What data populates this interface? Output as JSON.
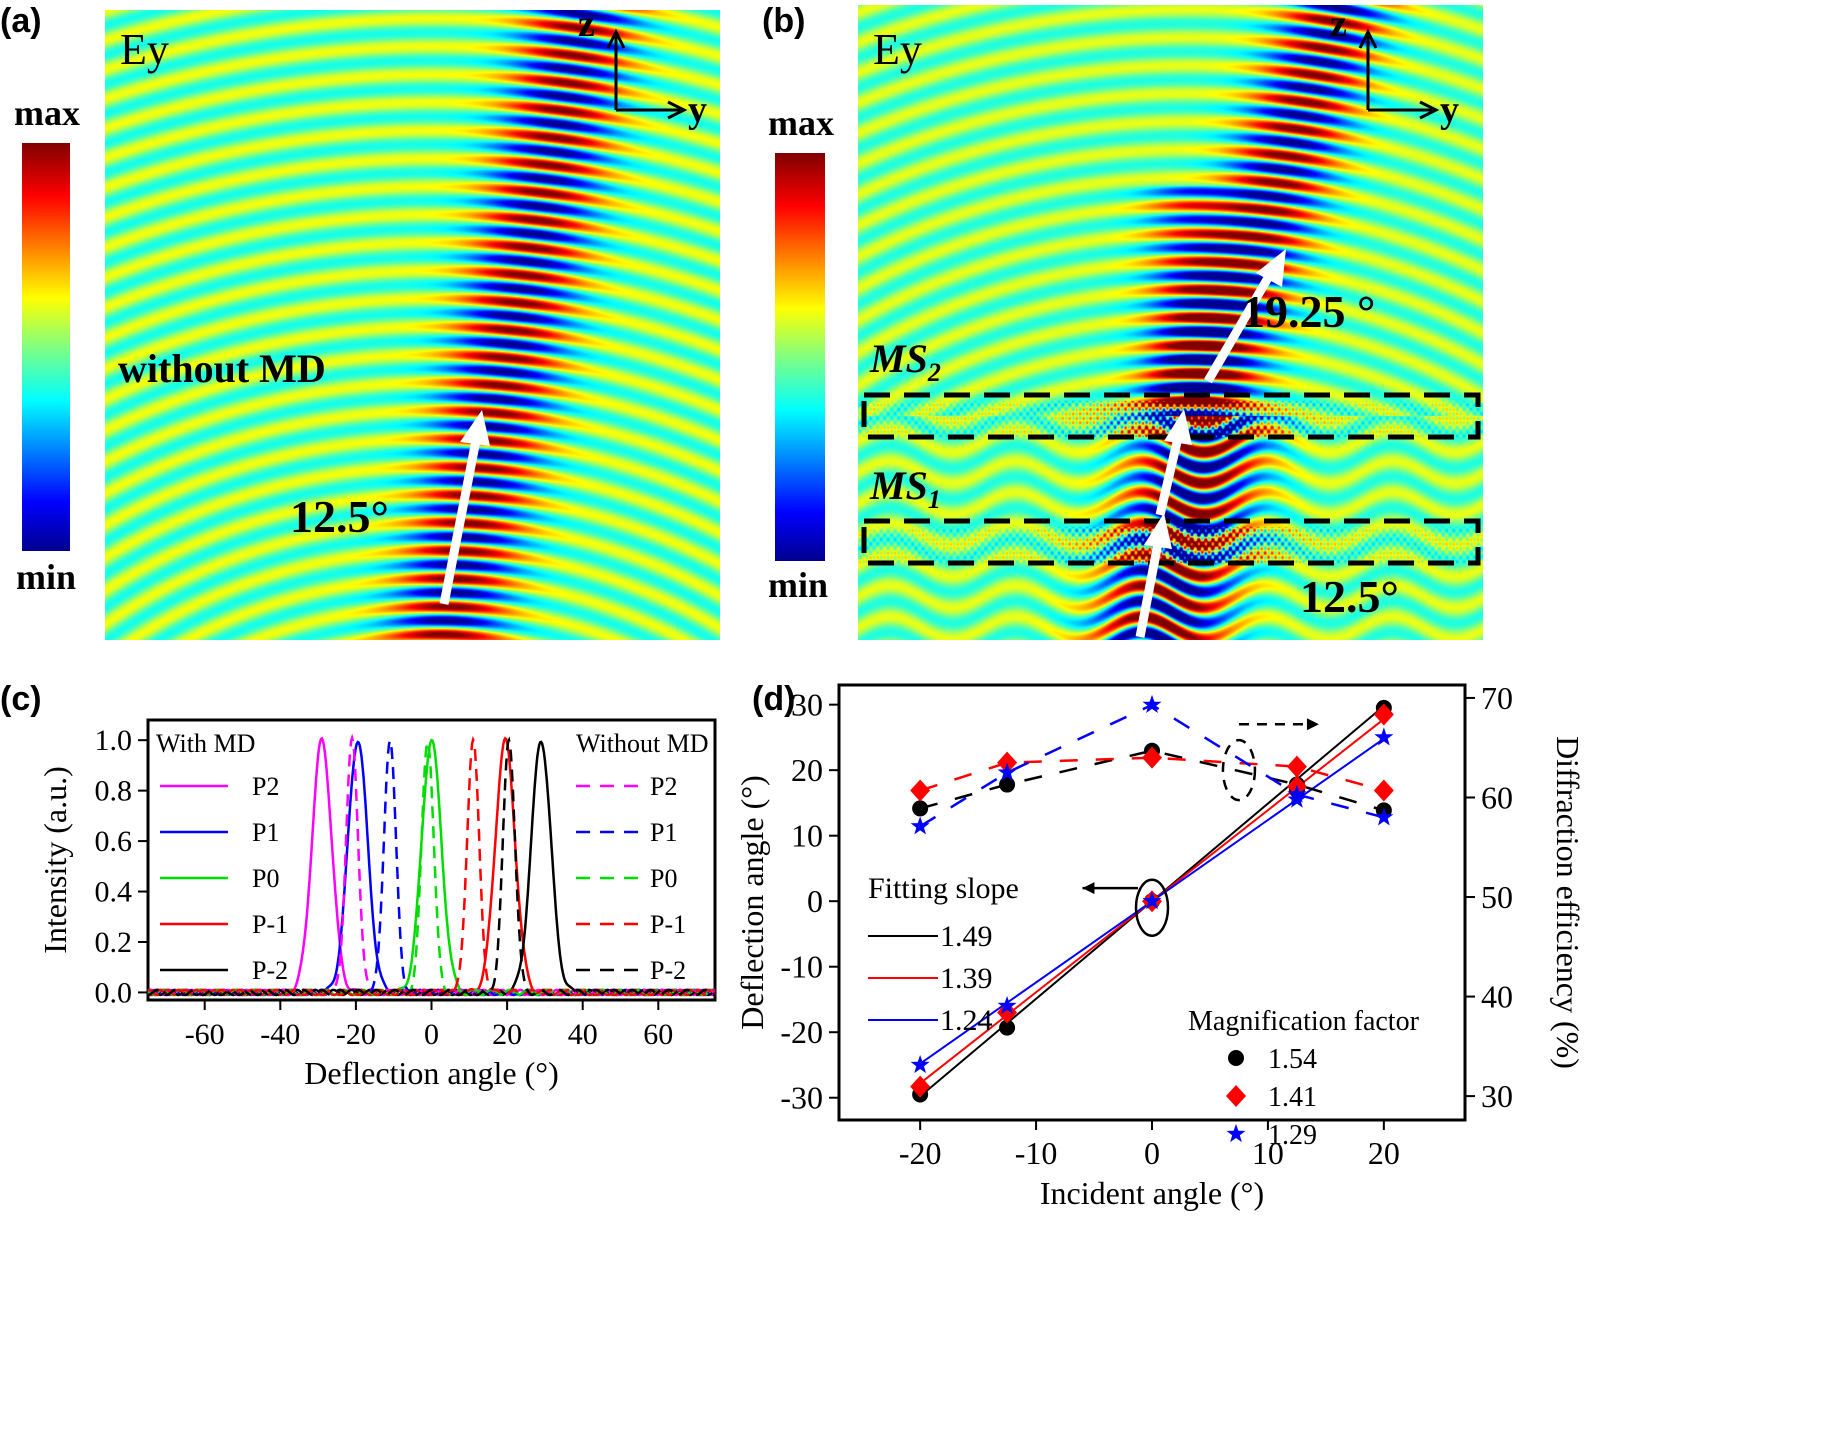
{
  "panel_a": {
    "label": "(a)",
    "component": "Ey",
    "axis_z": "z",
    "axis_y": "y",
    "colorbar_max": "max",
    "colorbar_min": "min",
    "annotation": "without MD",
    "angle": "12.5°"
  },
  "panel_b": {
    "label": "(b)",
    "component": "Ey",
    "axis_z": "z",
    "axis_y": "y",
    "colorbar_max": "max",
    "colorbar_min": "min",
    "ms2": "MS",
    "ms2_sub": "2",
    "ms1": "MS",
    "ms1_sub": "1",
    "angle_out": "19.25 °",
    "angle_in": "12.5°"
  },
  "colormap": [
    "#00008f",
    "#0000ff",
    "#00ffff",
    "#80ff80",
    "#ffff00",
    "#ff0000",
    "#800000"
  ],
  "chart_data": [
    {
      "panel": "(c)",
      "type": "line",
      "xlabel": "Deflection angle (°)",
      "ylabel": "Intensity (a.u.)",
      "xlim": [
        -75,
        75
      ],
      "ylim": [
        -0.03,
        1.08
      ],
      "xticks": [
        -60,
        -40,
        -20,
        0,
        20,
        40,
        60
      ],
      "yticks": [
        0.0,
        0.2,
        0.4,
        0.6,
        0.8,
        1.0
      ],
      "ytick_labels": [
        "0.0",
        "0.2",
        "0.4",
        "0.6",
        "0.8",
        "1.0"
      ],
      "legend_with_title": "With MD",
      "legend_without_title": "Without MD",
      "series": [
        {
          "name": "P2",
          "group": "With MD",
          "style": "solid",
          "color": "#ff00ff",
          "peak_angle": -29,
          "peak_value": 1.0
        },
        {
          "name": "P1",
          "group": "With MD",
          "style": "solid",
          "color": "#0000ff",
          "peak_angle": -19.5,
          "peak_value": 1.0
        },
        {
          "name": "P0",
          "group": "With MD",
          "style": "solid",
          "color": "#00dd00",
          "peak_angle": 0,
          "peak_value": 1.0
        },
        {
          "name": "P-1",
          "group": "With MD",
          "style": "solid",
          "color": "#ff0000",
          "peak_angle": 19.5,
          "peak_value": 1.0
        },
        {
          "name": "P-2",
          "group": "With MD",
          "style": "solid",
          "color": "#000000",
          "peak_angle": 29,
          "peak_value": 1.0
        },
        {
          "name": "P2",
          "group": "Without MD",
          "style": "dashed",
          "color": "#ff00ff",
          "peak_angle": -21,
          "peak_value": 1.0
        },
        {
          "name": "P1",
          "group": "Without MD",
          "style": "dashed",
          "color": "#0000ff",
          "peak_angle": -11,
          "peak_value": 1.0
        },
        {
          "name": "P0",
          "group": "Without MD",
          "style": "dashed",
          "color": "#00dd00",
          "peak_angle": -1,
          "peak_value": 1.0
        },
        {
          "name": "P-1",
          "group": "Without MD",
          "style": "dashed",
          "color": "#ff0000",
          "peak_angle": 11,
          "peak_value": 1.0
        },
        {
          "name": "P-2",
          "group": "Without MD",
          "style": "dashed",
          "color": "#000000",
          "peak_angle": 20.5,
          "peak_value": 1.0
        }
      ]
    },
    {
      "panel": "(d)",
      "type": "scatter",
      "xlabel": "Incident angle (°)",
      "ylabel": "Deflection angle (°)",
      "ylabel_right": "Diffraction efficiency (%)",
      "xlim": [
        -27,
        27
      ],
      "ylim": [
        -33.4,
        33
      ],
      "ylim_right": [
        27.6,
        71.3
      ],
      "xticks": [
        -20,
        -10,
        0,
        10,
        20
      ],
      "yticks": [
        -30,
        -20,
        -10,
        0,
        10,
        20,
        30
      ],
      "yticks_right": [
        30,
        40,
        50,
        60,
        70
      ],
      "x": [
        -20,
        -12.5,
        0,
        12.5,
        20
      ],
      "legend_fit_title": "Fitting slope",
      "legend_mag_title": "Magnification factor",
      "fits": [
        {
          "name": "1.49",
          "slope": 1.49,
          "color": "#000000"
        },
        {
          "name": "1.39",
          "slope": 1.39,
          "color": "#ff0000"
        },
        {
          "name": "1.24",
          "slope": 1.24,
          "color": "#0000ff"
        }
      ],
      "series": [
        {
          "name": "1.54",
          "marker": "circle",
          "color": "#000000",
          "deflection": [
            -29.5,
            -19.3,
            0,
            17,
            29.5
          ],
          "efficiency": [
            58.9,
            61.3,
            64.7,
            61.3,
            58.7
          ]
        },
        {
          "name": "1.41",
          "marker": "diamond",
          "color": "#ff0000",
          "deflection": [
            -28.3,
            -17,
            0,
            17.5,
            28.5
          ],
          "efficiency": [
            60.7,
            63.5,
            64.0,
            63.1,
            60.7
          ]
        },
        {
          "name": "1.29",
          "marker": "star",
          "color": "#0000ff",
          "deflection": [
            -25,
            -16,
            0,
            15.5,
            25
          ],
          "efficiency": [
            57.1,
            62.5,
            69.3,
            60.3,
            58.0
          ]
        }
      ]
    }
  ]
}
